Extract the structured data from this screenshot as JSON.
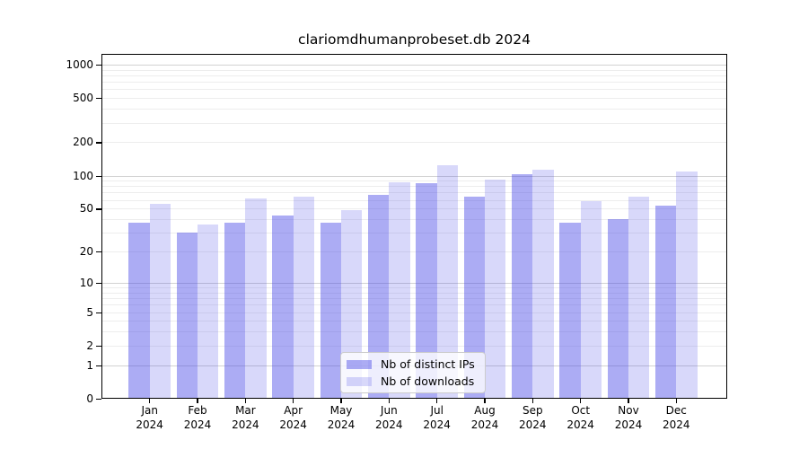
{
  "figure": {
    "title": "clariomdhumanprobeset.db 2024"
  },
  "legend": {
    "items": [
      {
        "label": "Nb of distinct IPs",
        "color": "rgba(70,70,230,0.45)"
      },
      {
        "label": "Nb of downloads",
        "color": "rgba(70,70,230,0.21)"
      }
    ],
    "position": "lower-center"
  },
  "chart_data": {
    "type": "bar",
    "title": "clariomdhumanprobeset.db 2024",
    "categories": [
      "Jan 2024",
      "Feb 2024",
      "Mar 2024",
      "Apr 2024",
      "May 2024",
      "Jun 2024",
      "Jul 2024",
      "Aug 2024",
      "Sep 2024",
      "Oct 2024",
      "Nov 2024",
      "Dec 2024"
    ],
    "series": [
      {
        "name": "Nb of distinct IPs",
        "color": "rgba(70,70,230,0.45)",
        "values": [
          37,
          30,
          37,
          43,
          37,
          67,
          85,
          64,
          102,
          37,
          40,
          53
        ]
      },
      {
        "name": "Nb of downloads",
        "color": "rgba(70,70,230,0.21)",
        "values": [
          55,
          36,
          62,
          64,
          48,
          87,
          123,
          92,
          114,
          58,
          64,
          109
        ]
      }
    ],
    "xlabel": "",
    "ylabel": "",
    "y_scale": "log10(1+y)",
    "y_ticks": [
      0,
      1,
      2,
      5,
      10,
      20,
      50,
      100,
      200,
      500,
      1000
    ],
    "ylim": [
      0,
      1250
    ],
    "grid": {
      "major_lines": [
        1,
        10,
        100,
        1000
      ],
      "minor_lines": [
        2,
        3,
        4,
        5,
        6,
        7,
        8,
        9,
        20,
        30,
        40,
        50,
        60,
        70,
        80,
        90,
        200,
        300,
        400,
        500,
        600,
        700,
        800,
        900
      ]
    },
    "colors": {
      "frame": "#000000",
      "grid_major": "#d2d2d2",
      "grid_minor": "#ededed"
    }
  }
}
